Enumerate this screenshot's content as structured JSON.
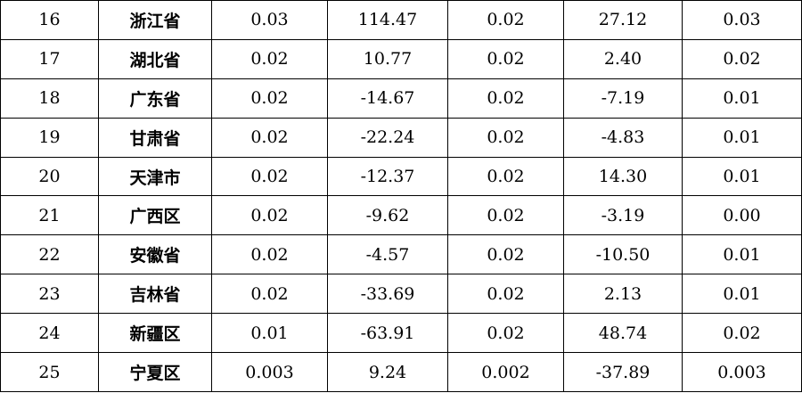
{
  "table": {
    "rows": [
      [
        "16",
        "浙江省",
        "0.03",
        "114.47",
        "0.02",
        "27.12",
        "0.03"
      ],
      [
        "17",
        "湖北省",
        "0.02",
        "10.77",
        "0.02",
        "2.40",
        "0.02"
      ],
      [
        "18",
        "广东省",
        "0.02",
        "-14.67",
        "0.02",
        "-7.19",
        "0.01"
      ],
      [
        "19",
        "甘肃省",
        "0.02",
        "-22.24",
        "0.02",
        "-4.83",
        "0.01"
      ],
      [
        "20",
        "天津市",
        "0.02",
        "-12.37",
        "0.02",
        "14.30",
        "0.01"
      ],
      [
        "21",
        "广西区",
        "0.02",
        "-9.62",
        "0.02",
        "-3.19",
        "0.00"
      ],
      [
        "22",
        "安徽省",
        "0.02",
        "-4.57",
        "0.02",
        "-10.50",
        "0.01"
      ],
      [
        "23",
        "吉林省",
        "0.02",
        "-33.69",
        "0.02",
        "2.13",
        "0.01"
      ],
      [
        "24",
        "新疆区",
        "0.01",
        "-63.91",
        "0.02",
        "48.74",
        "0.02"
      ],
      [
        "25",
        "宁夏区",
        "0.003",
        "9.24",
        "0.002",
        "-37.89",
        "0.003"
      ]
    ]
  }
}
